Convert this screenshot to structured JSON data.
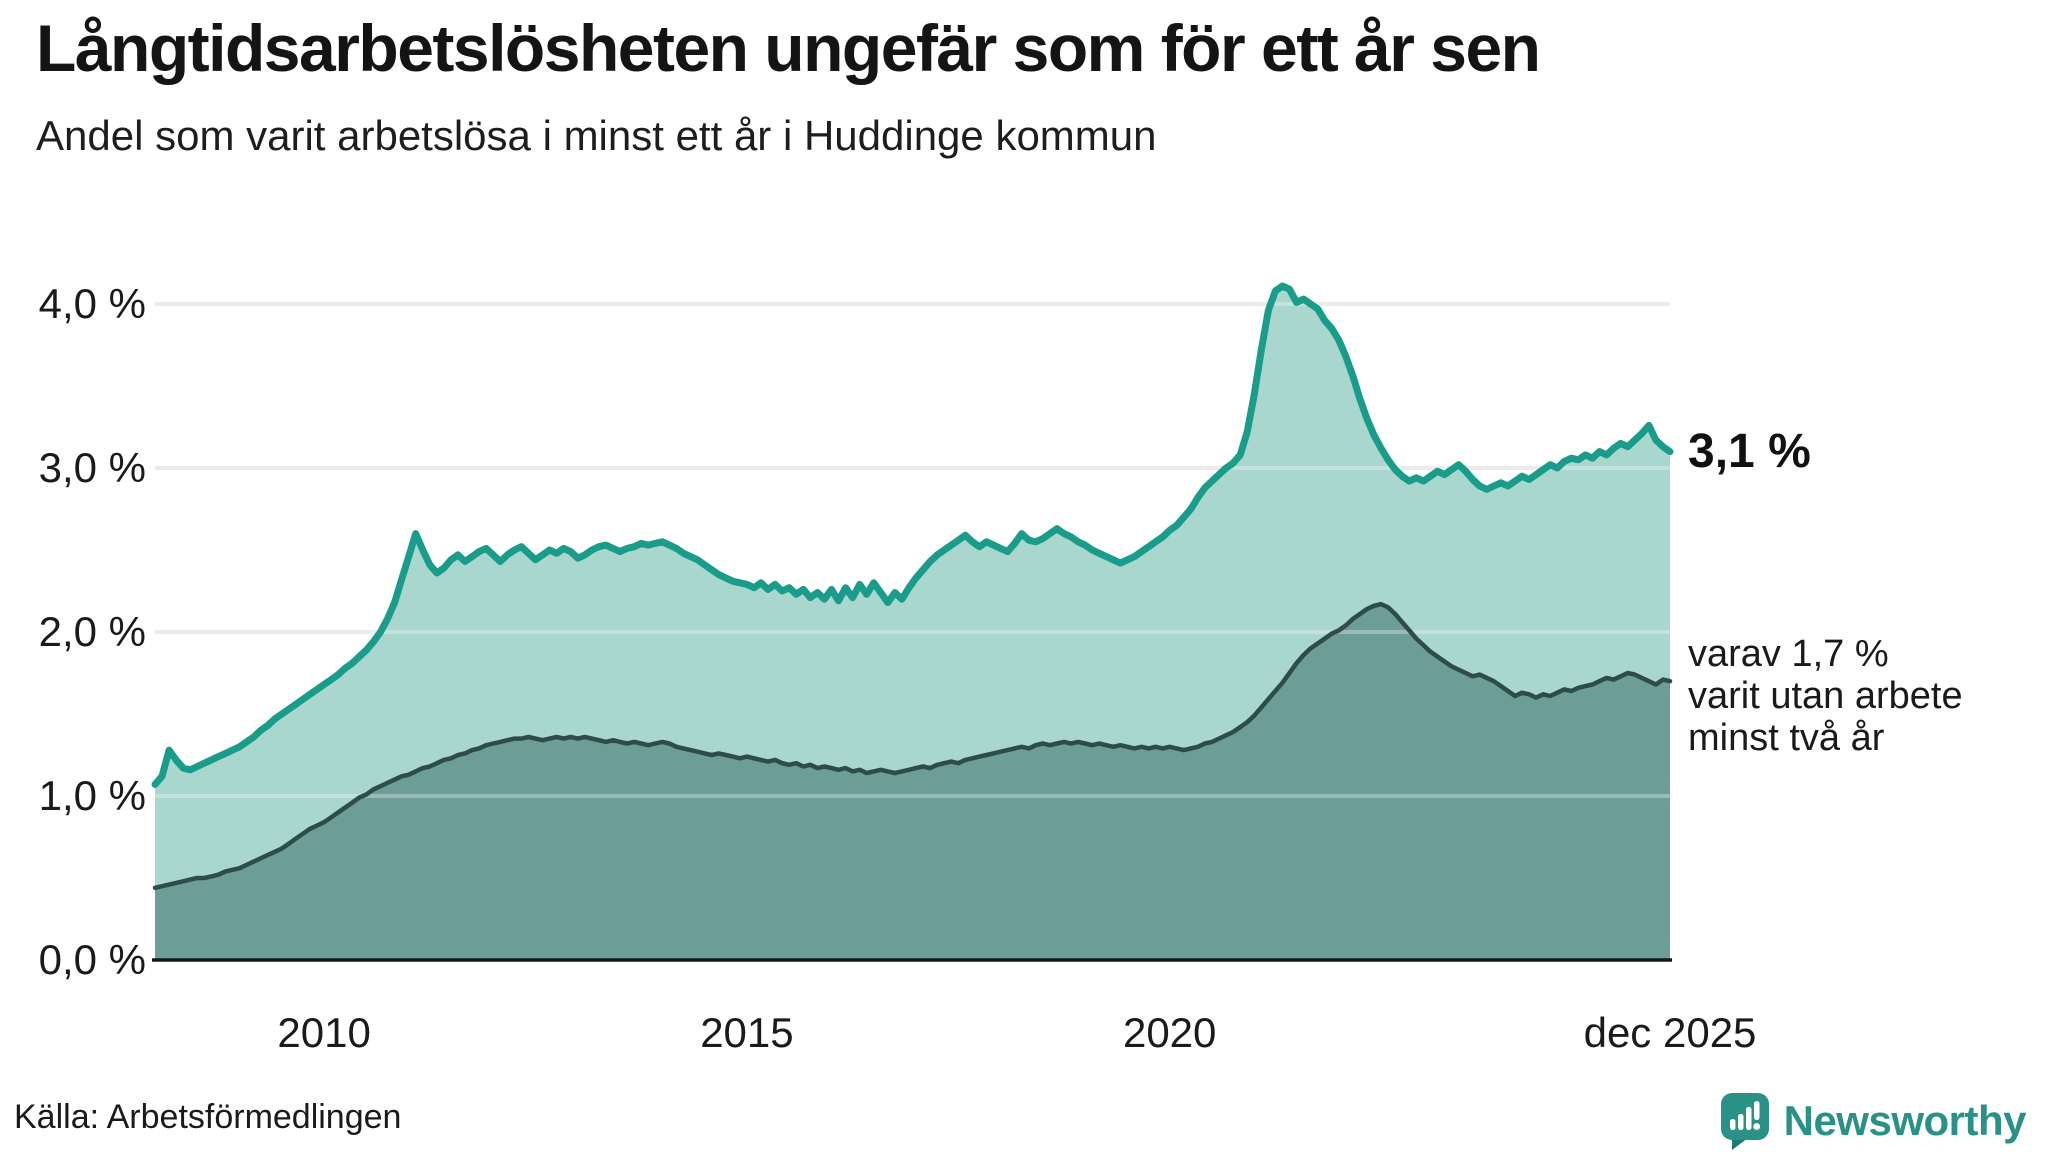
{
  "header": {
    "title": "Långtidsarbetslösheten ungefär som för ett år sen",
    "subtitle": "Andel som varit arbetslösa i minst ett år i Huddinge kommun"
  },
  "annotations": {
    "total_label": "3,1 %",
    "subset_lines": [
      "varav 1,7 %",
      "varit utan arbete",
      "minst två år"
    ]
  },
  "footer": {
    "source": "Källa: Arbetsförmedlingen",
    "brand": "Newsworthy"
  },
  "colors": {
    "accent_teal": "#1a9c8b",
    "light_fill": "#a9d6cd",
    "dark_fill": "#6d9d97",
    "dark_line": "#2e4d49",
    "grid": "#e4e4e6",
    "axis": "#14181a",
    "brand_teal": "#2a9187",
    "text": "#141414"
  },
  "chart_data": {
    "type": "area",
    "title": "Långtidsarbetslösheten ungefär som för ett år sen",
    "subtitle": "Andel som varit arbetslösa i minst ett år i Huddinge kommun",
    "unit": "%",
    "x_start": "jan 2008",
    "x_end": "dec 2025",
    "ylim": [
      0,
      4.3
    ],
    "grid": true,
    "y_ticks": [
      {
        "value": 4,
        "label": "4,0 %"
      },
      {
        "value": 3,
        "label": "3,0 %"
      },
      {
        "value": 2,
        "label": "2,0 %"
      },
      {
        "value": 1,
        "label": "1,0 %"
      },
      {
        "value": 0,
        "label": "0,0 %"
      }
    ],
    "x_ticks": [
      {
        "label": "2010",
        "month_index": 24
      },
      {
        "label": "2015",
        "month_index": 84
      },
      {
        "label": "2020",
        "month_index": 144
      },
      {
        "label": "dec 2025",
        "month_index": 215
      }
    ],
    "series": [
      {
        "name": "Andel arbetslösa minst ett år",
        "end_label": "3,1 %",
        "end_value": 3.1,
        "line_color": "#1a9c8b",
        "fill_color": "#a9d6cd",
        "values": [
          1.07,
          1.12,
          1.28,
          1.22,
          1.17,
          1.16,
          1.18,
          1.2,
          1.22,
          1.24,
          1.26,
          1.28,
          1.3,
          1.33,
          1.36,
          1.4,
          1.43,
          1.47,
          1.5,
          1.53,
          1.56,
          1.59,
          1.62,
          1.65,
          1.68,
          1.71,
          1.74,
          1.78,
          1.81,
          1.85,
          1.89,
          1.94,
          2.0,
          2.08,
          2.18,
          2.32,
          2.46,
          2.6,
          2.5,
          2.41,
          2.36,
          2.39,
          2.44,
          2.47,
          2.43,
          2.46,
          2.49,
          2.51,
          2.47,
          2.43,
          2.47,
          2.5,
          2.52,
          2.48,
          2.44,
          2.47,
          2.5,
          2.48,
          2.51,
          2.49,
          2.45,
          2.47,
          2.5,
          2.52,
          2.53,
          2.51,
          2.49,
          2.51,
          2.52,
          2.54,
          2.53,
          2.54,
          2.55,
          2.53,
          2.51,
          2.48,
          2.46,
          2.44,
          2.41,
          2.38,
          2.35,
          2.33,
          2.31,
          2.3,
          2.29,
          2.27,
          2.3,
          2.26,
          2.29,
          2.25,
          2.27,
          2.23,
          2.26,
          2.21,
          2.24,
          2.2,
          2.26,
          2.19,
          2.27,
          2.21,
          2.29,
          2.23,
          2.3,
          2.24,
          2.18,
          2.24,
          2.2,
          2.27,
          2.33,
          2.38,
          2.43,
          2.47,
          2.5,
          2.53,
          2.56,
          2.59,
          2.55,
          2.52,
          2.55,
          2.53,
          2.51,
          2.49,
          2.54,
          2.6,
          2.56,
          2.55,
          2.57,
          2.6,
          2.63,
          2.6,
          2.58,
          2.55,
          2.53,
          2.5,
          2.48,
          2.46,
          2.44,
          2.42,
          2.44,
          2.46,
          2.49,
          2.52,
          2.55,
          2.58,
          2.62,
          2.65,
          2.7,
          2.75,
          2.82,
          2.88,
          2.92,
          2.96,
          3.0,
          3.03,
          3.08,
          3.22,
          3.45,
          3.72,
          3.96,
          4.08,
          4.11,
          4.09,
          4.01,
          4.03,
          4.0,
          3.97,
          3.9,
          3.85,
          3.78,
          3.68,
          3.56,
          3.42,
          3.3,
          3.2,
          3.12,
          3.05,
          2.99,
          2.95,
          2.92,
          2.94,
          2.92,
          2.95,
          2.98,
          2.96,
          2.99,
          3.02,
          2.98,
          2.93,
          2.89,
          2.87,
          2.89,
          2.91,
          2.89,
          2.92,
          2.95,
          2.93,
          2.96,
          2.99,
          3.02,
          3.0,
          3.04,
          3.06,
          3.05,
          3.08,
          3.06,
          3.1,
          3.08,
          3.12,
          3.15,
          3.13,
          3.17,
          3.21,
          3.26,
          3.17,
          3.13,
          3.1
        ]
      },
      {
        "name": "varav utan arbete minst två år",
        "end_label": "1,7 %",
        "end_value": 1.7,
        "line_color": "#2e4d49",
        "fill_color": "#6d9d97",
        "values": [
          0.44,
          0.45,
          0.46,
          0.47,
          0.48,
          0.49,
          0.5,
          0.5,
          0.51,
          0.52,
          0.54,
          0.55,
          0.56,
          0.58,
          0.6,
          0.62,
          0.64,
          0.66,
          0.68,
          0.71,
          0.74,
          0.77,
          0.8,
          0.82,
          0.84,
          0.87,
          0.9,
          0.93,
          0.96,
          0.99,
          1.01,
          1.04,
          1.06,
          1.08,
          1.1,
          1.12,
          1.13,
          1.15,
          1.17,
          1.18,
          1.2,
          1.22,
          1.23,
          1.25,
          1.26,
          1.28,
          1.29,
          1.31,
          1.32,
          1.33,
          1.34,
          1.35,
          1.35,
          1.36,
          1.35,
          1.34,
          1.35,
          1.36,
          1.35,
          1.36,
          1.35,
          1.36,
          1.35,
          1.34,
          1.33,
          1.34,
          1.33,
          1.32,
          1.33,
          1.32,
          1.31,
          1.32,
          1.33,
          1.32,
          1.3,
          1.29,
          1.28,
          1.27,
          1.26,
          1.25,
          1.26,
          1.25,
          1.24,
          1.23,
          1.24,
          1.23,
          1.22,
          1.21,
          1.22,
          1.2,
          1.19,
          1.2,
          1.18,
          1.19,
          1.17,
          1.18,
          1.17,
          1.16,
          1.17,
          1.15,
          1.16,
          1.14,
          1.15,
          1.16,
          1.15,
          1.14,
          1.15,
          1.16,
          1.17,
          1.18,
          1.17,
          1.19,
          1.2,
          1.21,
          1.2,
          1.22,
          1.23,
          1.24,
          1.25,
          1.26,
          1.27,
          1.28,
          1.29,
          1.3,
          1.29,
          1.31,
          1.32,
          1.31,
          1.32,
          1.33,
          1.32,
          1.33,
          1.32,
          1.31,
          1.32,
          1.31,
          1.3,
          1.31,
          1.3,
          1.29,
          1.3,
          1.29,
          1.3,
          1.29,
          1.3,
          1.29,
          1.28,
          1.29,
          1.3,
          1.32,
          1.33,
          1.35,
          1.37,
          1.39,
          1.42,
          1.45,
          1.49,
          1.54,
          1.59,
          1.64,
          1.69,
          1.75,
          1.81,
          1.86,
          1.9,
          1.93,
          1.96,
          1.99,
          2.01,
          2.04,
          2.08,
          2.11,
          2.14,
          2.16,
          2.17,
          2.15,
          2.11,
          2.06,
          2.01,
          1.96,
          1.92,
          1.88,
          1.85,
          1.82,
          1.79,
          1.77,
          1.75,
          1.73,
          1.74,
          1.72,
          1.7,
          1.67,
          1.64,
          1.61,
          1.63,
          1.62,
          1.6,
          1.62,
          1.61,
          1.63,
          1.65,
          1.64,
          1.66,
          1.67,
          1.68,
          1.7,
          1.72,
          1.71,
          1.73,
          1.75,
          1.74,
          1.72,
          1.7,
          1.68,
          1.71,
          1.7
        ]
      }
    ]
  }
}
